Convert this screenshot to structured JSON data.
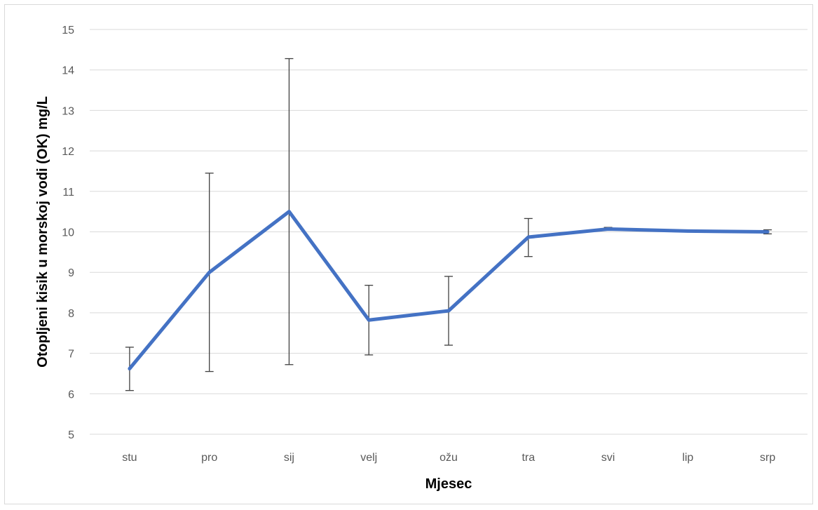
{
  "chart_data": {
    "type": "line",
    "title": "",
    "xlabel": "Mjesec",
    "ylabel": "Otopljeni kisik u morskoj vodi  (OK)   mg/L",
    "categories": [
      "stu",
      "pro",
      "sij",
      "velj",
      "ožu",
      "tra",
      "svi",
      "lip",
      "srp"
    ],
    "series": [
      {
        "values": [
          6.62,
          9.0,
          10.5,
          7.82,
          8.05,
          9.87,
          10.07,
          10.02,
          10.0
        ],
        "error_low": [
          6.08,
          6.55,
          6.72,
          6.96,
          7.2,
          9.39,
          10.04,
          10.01,
          9.95
        ],
        "error_high": [
          7.15,
          11.45,
          14.28,
          8.68,
          8.9,
          10.33,
          10.11,
          10.03,
          10.05
        ],
        "color": "#4472c4"
      }
    ],
    "ylim": [
      5,
      15
    ],
    "yticks": [
      5,
      6,
      7,
      8,
      9,
      10,
      11,
      12,
      13,
      14,
      15
    ],
    "grid": true,
    "legend": "none"
  }
}
